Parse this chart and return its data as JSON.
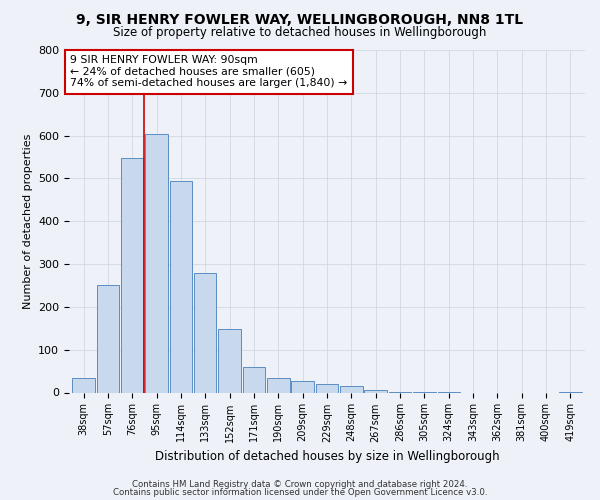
{
  "title": "9, SIR HENRY FOWLER WAY, WELLINGBOROUGH, NN8 1TL",
  "subtitle": "Size of property relative to detached houses in Wellingborough",
  "xlabel": "Distribution of detached houses by size in Wellingborough",
  "ylabel": "Number of detached properties",
  "bar_labels": [
    "38sqm",
    "57sqm",
    "76sqm",
    "95sqm",
    "114sqm",
    "133sqm",
    "152sqm",
    "171sqm",
    "190sqm",
    "209sqm",
    "229sqm",
    "248sqm",
    "267sqm",
    "286sqm",
    "305sqm",
    "324sqm",
    "343sqm",
    "362sqm",
    "381sqm",
    "400sqm",
    "419sqm"
  ],
  "bar_values": [
    35,
    250,
    548,
    603,
    493,
    278,
    148,
    60,
    35,
    28,
    20,
    15,
    5,
    2,
    1,
    1,
    0,
    0,
    0,
    0,
    2
  ],
  "bar_color": "#c9d9ed",
  "bar_edge_color": "#5b8ec4",
  "ylim": [
    0,
    800
  ],
  "yticks": [
    0,
    100,
    200,
    300,
    400,
    500,
    600,
    700,
    800
  ],
  "vline_x_index": 2.5,
  "vline_color": "#cc0000",
  "annotation_line1": "9 SIR HENRY FOWLER WAY: 90sqm",
  "annotation_line2": "← 24% of detached houses are smaller (605)",
  "annotation_line3": "74% of semi-detached houses are larger (1,840) →",
  "annotation_box_color": "#ffffff",
  "annotation_box_edge": "#cc0000",
  "grid_color": "#d0d8e4",
  "bg_color": "#eef2f8",
  "footer_line1": "Contains HM Land Registry data © Crown copyright and database right 2024.",
  "footer_line2": "Contains public sector information licensed under the Open Government Licence v3.0."
}
